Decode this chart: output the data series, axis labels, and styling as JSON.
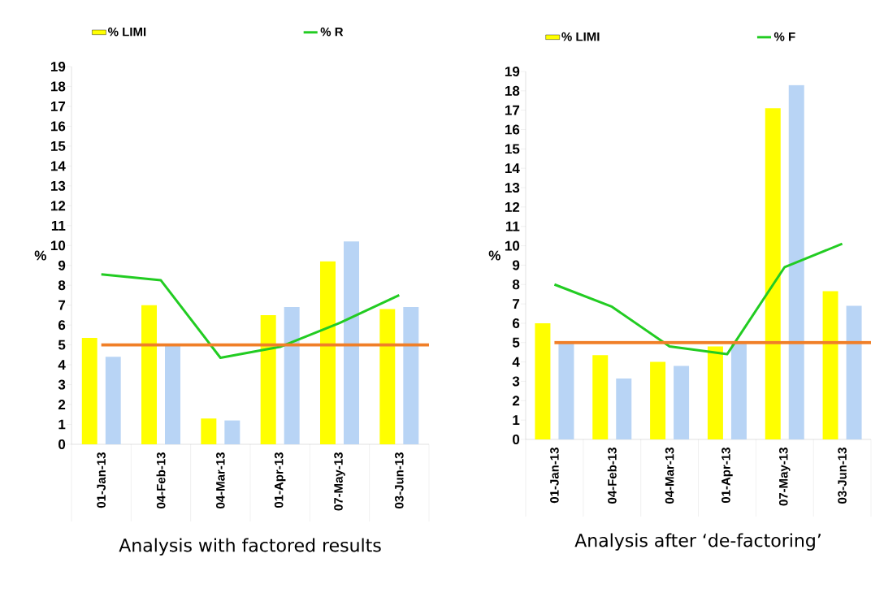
{
  "chart_data": [
    {
      "type": "bar",
      "title": "Analysis with factored results",
      "ylabel": "%",
      "categories": [
        "01-Jan-13",
        "04-Feb-13",
        "04-Mar-13",
        "01-Apr-13",
        "07-May-13",
        "03-Jun-13"
      ],
      "series": [
        {
          "name": "% LIMI",
          "color": "#ffff00",
          "values": [
            5.35,
            7.0,
            1.3,
            6.5,
            9.2,
            6.8
          ]
        },
        {
          "color": "#b8d4f5",
          "values": [
            4.4,
            5.0,
            1.2,
            6.9,
            10.2,
            6.9
          ]
        },
        {
          "name": "% R",
          "type": "line",
          "color": "#22cc22",
          "values": [
            8.55,
            8.25,
            4.35,
            4.9,
            6.1,
            7.5
          ]
        }
      ],
      "ylim": [
        0,
        19
      ],
      "yticks": [
        0,
        1,
        2,
        3,
        4,
        5,
        6,
        7,
        8,
        9,
        10,
        11,
        12,
        13,
        14,
        15,
        16,
        17,
        18,
        19
      ],
      "ref_lines": [
        {
          "axis": "y",
          "value": 5,
          "color": "#f07f28"
        }
      ],
      "legend": "top"
    },
    {
      "type": "bar",
      "title": "Analysis after ‘de-factoring’",
      "ylabel": "%",
      "categories": [
        "01-Jan-13",
        "04-Feb-13",
        "04-Mar-13",
        "01-Apr-13",
        "07-May-13",
        "03-Jun-13"
      ],
      "series": [
        {
          "name": "% LIMI",
          "color": "#ffff00",
          "values": [
            6.0,
            4.35,
            4.0,
            4.8,
            17.1,
            7.65
          ]
        },
        {
          "color": "#b8d4f5",
          "values": [
            5.0,
            3.15,
            3.8,
            5.0,
            18.3,
            6.9
          ]
        },
        {
          "name": "% F",
          "type": "line",
          "color": "#22cc22",
          "values": [
            8.0,
            6.85,
            4.8,
            4.4,
            8.9,
            10.1
          ]
        }
      ],
      "ylim": [
        0,
        19
      ],
      "yticks": [
        0,
        1,
        2,
        3,
        4,
        5,
        6,
        7,
        8,
        9,
        10,
        11,
        12,
        13,
        14,
        15,
        16,
        17,
        18,
        19
      ],
      "ref_lines": [
        {
          "axis": "y",
          "value": 5,
          "color": "#f07f28"
        }
      ],
      "legend": "top"
    }
  ]
}
